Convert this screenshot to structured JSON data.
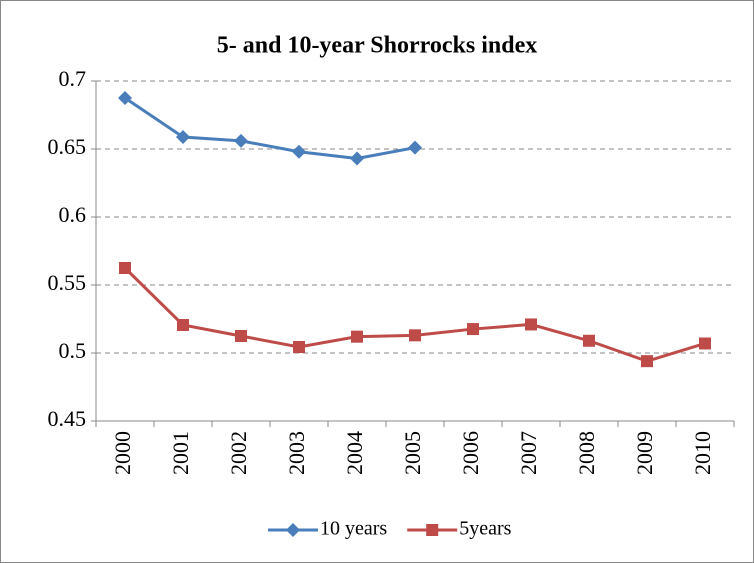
{
  "chart_data": {
    "type": "line",
    "title": "5- and 10-year Shorrocks index",
    "categories": [
      "2000",
      "2001",
      "2002",
      "2003",
      "2004",
      "2005",
      "2006",
      "2007",
      "2008",
      "2009",
      "2010"
    ],
    "series": [
      {
        "name": "10 years",
        "color": "#4a7ebb",
        "marker": "diamond",
        "values": [
          0.6875,
          0.6588,
          0.656,
          0.648,
          0.643,
          0.651,
          null,
          null,
          null,
          null,
          null
        ]
      },
      {
        "name": "5years",
        "color": "#be4b48",
        "marker": "square",
        "values": [
          0.5625,
          0.5206,
          0.5125,
          0.5044,
          0.512,
          0.513,
          0.5176,
          0.521,
          0.509,
          0.494,
          0.507
        ]
      }
    ],
    "ylim": [
      0.45,
      0.7
    ],
    "yticks": [
      0.45,
      0.5,
      0.55,
      0.6,
      0.65,
      0.7
    ],
    "grid": true,
    "legend": "bottom"
  }
}
